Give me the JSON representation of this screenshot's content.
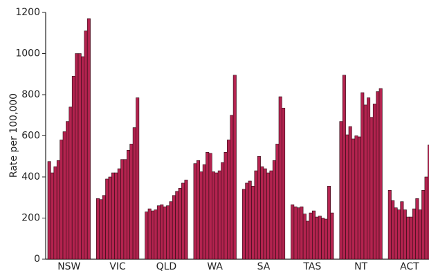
{
  "chart_data": {
    "type": "grouped-bar",
    "ylabel": "Rate per 100,000",
    "categories": [
      "NSW",
      "VIC",
      "QLD",
      "WA",
      "SA",
      "TAS",
      "NT",
      "ACT"
    ],
    "values": [
      [
        475,
        420,
        450,
        480,
        580,
        620,
        670,
        740,
        890,
        1000,
        1000,
        985,
        1110,
        1170
      ],
      [
        295,
        290,
        310,
        390,
        400,
        420,
        420,
        440,
        485,
        485,
        530,
        560,
        640,
        785
      ],
      [
        230,
        245,
        235,
        240,
        260,
        265,
        255,
        260,
        280,
        310,
        330,
        345,
        370,
        385
      ],
      [
        465,
        480,
        425,
        460,
        520,
        515,
        425,
        420,
        430,
        470,
        520,
        580,
        700,
        895
      ],
      [
        340,
        370,
        380,
        355,
        430,
        500,
        450,
        440,
        420,
        430,
        480,
        560,
        790,
        735
      ],
      [
        265,
        255,
        250,
        255,
        220,
        185,
        225,
        235,
        205,
        210,
        200,
        195,
        355,
        225
      ],
      [
        670,
        895,
        605,
        645,
        585,
        600,
        595,
        810,
        750,
        785,
        690,
        755,
        815,
        830
      ],
      [
        335,
        285,
        250,
        240,
        280,
        240,
        205,
        205,
        245,
        295,
        240,
        335,
        400,
        555
      ]
    ],
    "color": "#b3234f",
    "ylim": [
      0,
      1200
    ],
    "yticks": [
      0,
      200,
      400,
      600,
      800,
      1000,
      1200
    ]
  }
}
